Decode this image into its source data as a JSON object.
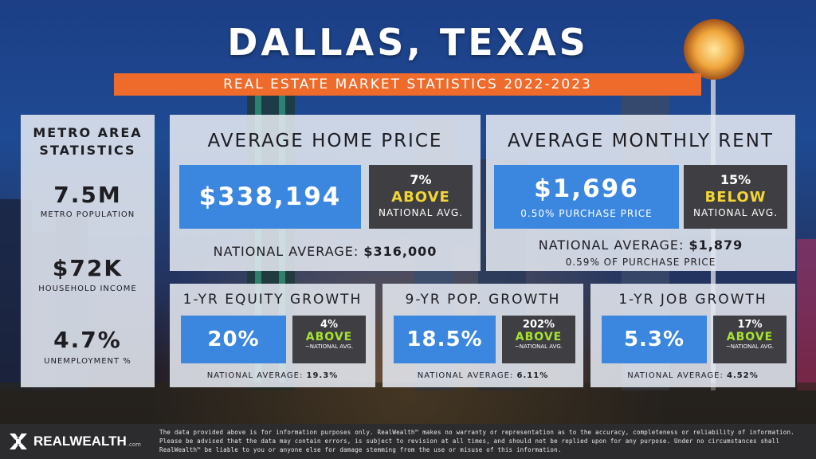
{
  "header": {
    "title": "DALLAS, TEXAS",
    "subtitle": "REAL ESTATE MARKET STATISTICS 2022-2023"
  },
  "metro": {
    "heading_line1": "METRO AREA",
    "heading_line2": "STATISTICS",
    "stats": [
      {
        "value": "7.5M",
        "label": "METRO POPULATION"
      },
      {
        "value": "$72K",
        "label": "HOUSEHOLD INCOME"
      },
      {
        "value": "4.7%",
        "label": "UNEMPLOYMENT %"
      }
    ]
  },
  "home_price": {
    "heading": "AVERAGE HOME PRICE",
    "value": "$338,194",
    "pct": "7%",
    "direction": "ABOVE",
    "compare": "NATIONAL AVG.",
    "national_label": "NATIONAL AVERAGE:",
    "national_value": "$316,000"
  },
  "rent": {
    "heading": "AVERAGE MONTHLY RENT",
    "value": "$1,696",
    "sub": "0.50% PURCHASE PRICE",
    "pct": "15%",
    "direction": "BELOW",
    "compare": "NATIONAL AVG.",
    "national_label": "NATIONAL AVERAGE:",
    "national_value": "$1,879",
    "national_sub": "0.59% OF PURCHASE PRICE"
  },
  "small_panels": [
    {
      "heading": "1-YR EQUITY GROWTH",
      "value": "20%",
      "pct": "4%",
      "direction": "ABOVE",
      "compare": "~NATIONAL AVG.",
      "national_label": "NATIONAL AVERAGE:",
      "national_value": "19.3%"
    },
    {
      "heading": "9-YR POP. GROWTH",
      "value": "18.5%",
      "pct": "202%",
      "direction": "ABOVE",
      "compare": "~NATIONAL AVG.",
      "national_label": "NATIONAL AVERAGE:",
      "national_value": "6.11%"
    },
    {
      "heading": "1-YR JOB GROWTH",
      "value": "5.3%",
      "pct": "17%",
      "direction": "ABOVE",
      "compare": "~NATIONAL AVG.",
      "national_label": "NATIONAL AVERAGE:",
      "national_value": "4.52%"
    }
  ],
  "footer": {
    "logo_text": "REALWEALTH",
    "logo_suffix": ".com",
    "disclaimer": "The data provided above is for information purposes only. RealWealth™ makes no warranty or representation as to the accuracy, completeness or reliability of information. Please be advised that the data may contain errors, is subject to revision at all times, and should not be replied upon for any purpose. Under no circumstances shall RealWealth™ be liable to you or anyone else for damage stemming from the use or misuse of this information."
  },
  "colors": {
    "accent_orange": "#ee6b2c",
    "value_blue": "#3b87df",
    "dark_box": "#3f3f43",
    "above_yellow": "#f3d634",
    "above_green": "#a6e52f"
  }
}
